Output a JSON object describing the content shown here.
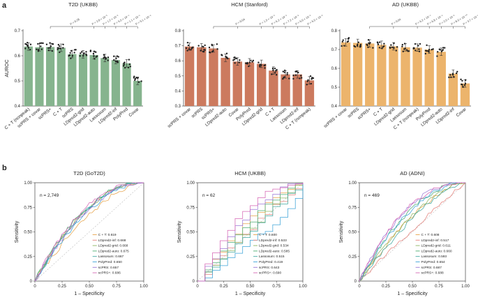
{
  "panel_labels": [
    "a",
    "b"
  ],
  "chart_data": [
    {
      "type": "bar",
      "panel": "a",
      "title": "T2D (UKBB)",
      "ylabel": "AUROC",
      "ylim": [
        0.4,
        0.7
      ],
      "color": "#86b48e",
      "yticks": [
        "0.4",
        "0.5",
        "0.6",
        "0.7"
      ],
      "categories": [
        "C + T (nonpeak)",
        "scPRS + covar",
        "scPRS+",
        "C + T",
        "scPRS",
        "LDpred2-grid",
        "LDpred2-auto",
        "Lassosum",
        "LDpred2-inf",
        "PolyPred",
        "Covar"
      ],
      "values": [
        0.637,
        0.634,
        0.635,
        0.632,
        0.607,
        0.606,
        0.603,
        0.591,
        0.583,
        0.57,
        0.5
      ],
      "bracket_from": 2,
      "pvalues": [
        "P = 0.28",
        "P = 2.8 × 10⁻³",
        "P = 1.2 × 10⁻³",
        "P = 5.5 × 10⁻⁴",
        "P = 1.1 × 10⁻⁵",
        "P = 9.1 × 10⁻⁶"
      ]
    },
    {
      "type": "bar",
      "panel": "a",
      "title": "HCM (Stanford)",
      "ylabel": "",
      "ylim": [
        0.3,
        0.8
      ],
      "color": "#cc7a5e",
      "yticks": [
        "0.3",
        "0.4",
        "0.5",
        "0.6",
        "0.7",
        "0.8"
      ],
      "categories": [
        "scPRS + covar",
        "scPRS",
        "scPRS+",
        "LDpred2-auto",
        "Covar",
        "PolyPred",
        "LDpred2-grid",
        "C + T",
        "Lassosum",
        "LDpred2-inf",
        "C + T (nonpeak)"
      ],
      "values": [
        0.695,
        0.69,
        0.682,
        0.62,
        0.595,
        0.59,
        0.58,
        0.535,
        0.51,
        0.51,
        0.47
      ],
      "bracket_from": 2,
      "pvalues": [
        "P = 0.04",
        "P = 1.5 × 10⁻²",
        "P = 6.2 × 10⁻²",
        "P = 7.2 × 10⁻³",
        "P = 5.0 × 10⁻³",
        "P = 5.5 × 10⁻³"
      ]
    },
    {
      "type": "bar",
      "panel": "a",
      "title": "AD (UKBB)",
      "ylabel": "",
      "ylim": [
        0.4,
        0.8
      ],
      "color": "#ecb46c",
      "yticks": [
        "0.4",
        "0.5",
        "0.6",
        "0.7",
        "0.8"
      ],
      "categories": [
        "scPRS + covar",
        "scPRS",
        "scPRS+",
        "C + T",
        "LDpred2-grid",
        "Lassosum",
        "C + T (nonpeak)",
        "PolyPred",
        "LDpred2-auto",
        "LDpred2-inf",
        "Covar"
      ],
      "values": [
        0.738,
        0.735,
        0.732,
        0.725,
        0.717,
        0.712,
        0.71,
        0.7,
        0.688,
        0.572,
        0.52
      ],
      "bracket_from": 2,
      "pvalues": [
        "P = 0.04",
        "P = 6.2 × 10⁻⁴",
        "P = 6.8 × 10⁻⁵",
        "P = 2.5 × 10⁻³",
        "P = 8.9 × 10⁻¹⁰",
        "P = 3.7 × 10⁻⁸"
      ]
    },
    {
      "type": "line",
      "panel": "b",
      "subtype": "roc",
      "title": "T2D (GoT2D)",
      "xlabel": "1 – Specificity",
      "ylabel": "Sensitivity",
      "xlim": [
        0,
        1
      ],
      "ylim": [
        0,
        1
      ],
      "n_label": "n = 2,749",
      "legend_position": "bottom-right",
      "ticks": [
        "0",
        "0.25",
        "0.50",
        "0.75",
        "1.00"
      ],
      "series": [
        {
          "name": "C + T: 0.619",
          "color": "#e7a34b"
        },
        {
          "name": "LDpred2-inf: 0.668",
          "color": "#e4817b"
        },
        {
          "name": "LDpred2-grid: 0.668",
          "color": "#8db560"
        },
        {
          "name": "LDpred2-auto: 0.675",
          "color": "#4aab70"
        },
        {
          "name": "Lassosum: 0.667",
          "color": "#41a8a0"
        },
        {
          "name": "PolyPred: 0.650",
          "color": "#3da3d8"
        },
        {
          "name": "scPRS: 0.657",
          "color": "#9b78d6"
        },
        {
          "name": "scPRS+: 0.686",
          "color": "#d666b5"
        }
      ]
    },
    {
      "type": "line",
      "panel": "b",
      "subtype": "roc",
      "title": "HCM (UKBB)",
      "xlabel": "1 – Specificity",
      "ylabel": "Sensitivity",
      "xlim": [
        0,
        1
      ],
      "ylim": [
        0,
        1
      ],
      "n_label": "n = 62",
      "legend_position": "bottom-right",
      "ticks": [
        "0",
        "0.25",
        "0.50",
        "0.75",
        "1.00"
      ],
      "series": [
        {
          "name": "C + T: 0.600",
          "color": "#e7a34b"
        },
        {
          "name": "LDpred2-inf: 0.533",
          "color": "#e4817b"
        },
        {
          "name": "LDpred2-grid: 0.534",
          "color": "#8db560"
        },
        {
          "name": "LDpred2-auto: 0.585",
          "color": "#4aab70"
        },
        {
          "name": "Lassosum: 0.515",
          "color": "#41a8a0"
        },
        {
          "name": "PolyPred: 0.419",
          "color": "#3da3d8"
        },
        {
          "name": "scPRS: 0.643",
          "color": "#9b78d6"
        },
        {
          "name": "scPRS+: 0.690",
          "color": "#d666b5"
        }
      ]
    },
    {
      "type": "line",
      "panel": "b",
      "subtype": "roc",
      "title": "AD (ADNI)",
      "xlabel": "1 – Specificity",
      "ylabel": "Sensitivity",
      "xlim": [
        0,
        1
      ],
      "ylim": [
        0,
        1
      ],
      "n_label": "n = 469",
      "legend_position": "bottom-right",
      "ticks": [
        "0",
        "0.25",
        "0.50",
        "0.75",
        "1.00"
      ],
      "series": [
        {
          "name": "C + T: 0.608",
          "color": "#e7a34b"
        },
        {
          "name": "LDpred2-inf: 0.517",
          "color": "#e4817b"
        },
        {
          "name": "LDpred2-grid: 0.611",
          "color": "#8db560"
        },
        {
          "name": "LDpred2-auto: 0.660",
          "color": "#4aab70"
        },
        {
          "name": "Lassosum: 0.593",
          "color": "#41a8a0"
        },
        {
          "name": "PolyPred: 0.654",
          "color": "#3da3d8"
        },
        {
          "name": "scPRS: 0.687",
          "color": "#9b78d6"
        },
        {
          "name": "scPRS+: 0.688",
          "color": "#d666b5"
        }
      ]
    }
  ]
}
